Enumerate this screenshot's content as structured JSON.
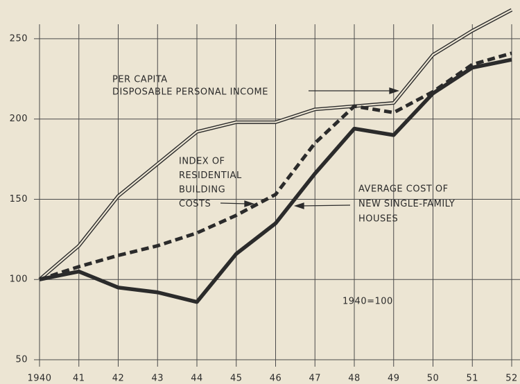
{
  "chart_data": {
    "type": "line",
    "categories": [
      "1940",
      "41",
      "42",
      "43",
      "44",
      "45",
      "46",
      "47",
      "48",
      "49",
      "50",
      "51",
      "52"
    ],
    "series": [
      {
        "name": [
          "PER CAPITA",
          "DISPOSABLE PERSONAL INCOME"
        ],
        "style": "double",
        "color": "#2b2b2b",
        "values": [
          100,
          121,
          152,
          172,
          192,
          198,
          198,
          206,
          208,
          210,
          240,
          255,
          268
        ]
      },
      {
        "name": [
          "INDEX OF",
          "RESIDENTIAL",
          "BUILDING",
          "COSTS"
        ],
        "style": "dashed",
        "color": "#2b2b2b",
        "values": [
          100,
          108,
          115,
          121,
          129,
          140,
          153,
          185,
          208,
          204,
          217,
          234,
          241
        ]
      },
      {
        "name": [
          "AVERAGE COST OF",
          "NEW SINGLE-FAMILY",
          "HOUSES"
        ],
        "style": "solid",
        "color": "#2b2b2b",
        "values": [
          100,
          105,
          95,
          92,
          86,
          116,
          135,
          166,
          194,
          190,
          216,
          232,
          237
        ]
      }
    ],
    "annotations": [
      "1940=100"
    ],
    "ylim": [
      50,
      272
    ],
    "yticks": [
      50,
      100,
      150,
      200,
      250
    ],
    "grid": true
  }
}
